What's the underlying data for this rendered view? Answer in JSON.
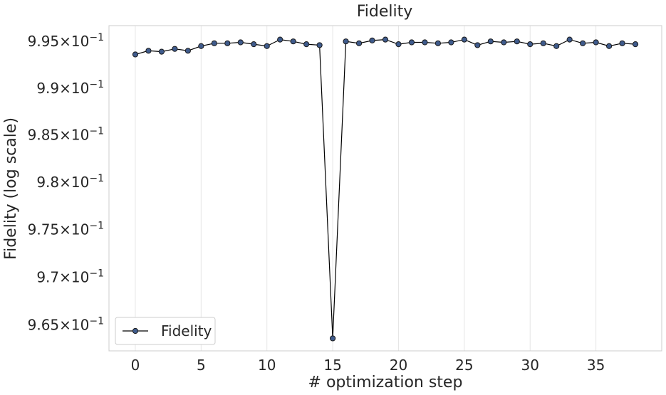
{
  "chart_data": {
    "type": "line",
    "title": "Fidelity",
    "xlabel": "# optimization step",
    "ylabel": "Fidelity (log scale)",
    "y_scale": "log",
    "grid": true,
    "legend_position": "lower-left",
    "xlim": [
      -2,
      40
    ],
    "ylim": [
      0.9623,
      0.9967
    ],
    "x_ticks": [
      0,
      5,
      10,
      15,
      20,
      25,
      30,
      35
    ],
    "y_ticks": [
      {
        "value": 0.965,
        "mantissa": "9.65",
        "base": "10",
        "exponent": "−1"
      },
      {
        "value": 0.97,
        "mantissa": "9.7",
        "base": "10",
        "exponent": "−1"
      },
      {
        "value": 0.975,
        "mantissa": "9.75",
        "base": "10",
        "exponent": "−1"
      },
      {
        "value": 0.98,
        "mantissa": "9.8",
        "base": "10",
        "exponent": "−1"
      },
      {
        "value": 0.985,
        "mantissa": "9.85",
        "base": "10",
        "exponent": "−1"
      },
      {
        "value": 0.99,
        "mantissa": "9.9",
        "base": "10",
        "exponent": "−1"
      },
      {
        "value": 0.995,
        "mantissa": "9.95",
        "base": "10",
        "exponent": "−1"
      }
    ],
    "times_symbol": "×",
    "series": [
      {
        "name": "Fidelity",
        "line_color": "#000000",
        "marker_color": "#3f5b8c",
        "x": [
          0,
          1,
          2,
          3,
          4,
          5,
          6,
          7,
          8,
          9,
          10,
          11,
          12,
          13,
          14,
          15,
          16,
          17,
          18,
          19,
          20,
          21,
          22,
          23,
          24,
          25,
          26,
          27,
          28,
          29,
          30,
          31,
          32,
          33,
          34,
          35,
          36,
          37,
          38
        ],
        "y": [
          0.9936,
          0.994,
          0.9939,
          0.9942,
          0.994,
          0.9945,
          0.9948,
          0.9948,
          0.9949,
          0.9947,
          0.9945,
          0.9952,
          0.995,
          0.9947,
          0.9946,
          0.9636,
          0.995,
          0.9948,
          0.9951,
          0.9952,
          0.9947,
          0.9949,
          0.9949,
          0.9948,
          0.9949,
          0.9952,
          0.9946,
          0.995,
          0.9949,
          0.995,
          0.9947,
          0.9948,
          0.9945,
          0.9952,
          0.9948,
          0.9949,
          0.9945,
          0.9948,
          0.9947
        ]
      }
    ]
  }
}
